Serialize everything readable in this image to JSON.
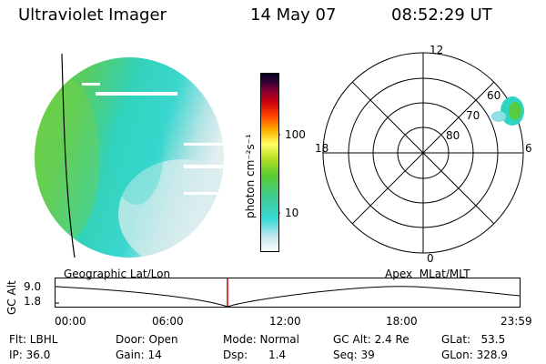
{
  "header": {
    "title": "Ultraviolet Imager",
    "date": "14 May 07",
    "time": "08:52:29 UT"
  },
  "colorbar": {
    "unit_label": "photon cm⁻²s⁻¹",
    "ticks": [
      "100",
      "10"
    ]
  },
  "polar": {
    "mlt_labels": {
      "top": "12",
      "left": "18",
      "right": "6",
      "bottom": "0"
    },
    "lat_labels": [
      "60",
      "70",
      "80"
    ]
  },
  "orbit_panel": {
    "left_label": "Geographic Lat/Lon",
    "right_label": "Apex  MLat/MLT",
    "y_axis_label": "GC Alt",
    "y_ticks": [
      "9.0",
      "1.8"
    ],
    "x_ticks": [
      "00:00",
      "06:00",
      "12:00",
      "18:00",
      "23:59"
    ],
    "marker_color": "#cc0000"
  },
  "info": {
    "flt": "Flt: LBHL",
    "ip": "IP: 36.0",
    "door": "Door: Open",
    "gain": "Gain: 14",
    "mode": "Mode: Normal",
    "dsp": "Dsp:      1.4",
    "gc_alt": "GC Alt: 2.4 Re",
    "seq": "Seq: 39",
    "glat": "GLat:   53.5",
    "glon": "GLon: 328.9"
  }
}
